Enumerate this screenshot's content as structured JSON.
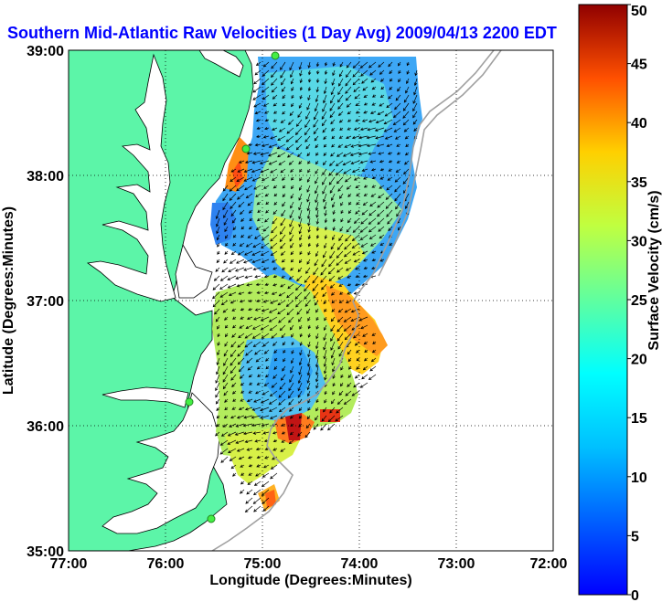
{
  "chart_data": {
    "type": "heatmap",
    "title": "Southern Mid-Atlantic Raw Velocities (1 Day Avg) 2009/04/13 2200 EDT",
    "xlabel": "Longitude (Degrees:Minutes)",
    "ylabel": "Latitude (Degrees:Minutes)",
    "x_ticks": [
      "77:00",
      "76:00",
      "75:00",
      "74:00",
      "73:00",
      "72:00"
    ],
    "y_ticks": [
      "39:00",
      "38:00",
      "37:00",
      "36:00",
      "35:00"
    ],
    "xlim": [
      -77,
      -72
    ],
    "ylim": [
      35,
      39
    ],
    "grid": true,
    "colorbar": {
      "label": "Surface Velocity (cm/s)",
      "range": [
        0,
        50
      ],
      "ticks": [
        "0",
        "5",
        "10",
        "15",
        "20",
        "25",
        "30",
        "35",
        "40",
        "45",
        "50"
      ],
      "colormap": "jet"
    },
    "colors": {
      "land": "#5cf5a8",
      "title": "#0000ff",
      "arrows": "#000000",
      "bathymetry": "#a0a0a0",
      "sites": "#44ee44"
    }
  }
}
